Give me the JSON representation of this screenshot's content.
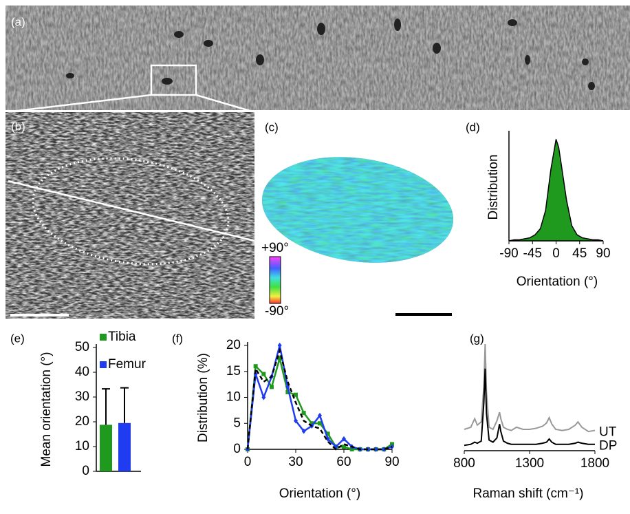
{
  "panel_labels": [
    "(a)",
    "(b)",
    "(c)",
    "(d)",
    "(e)",
    "(f)",
    "(g)"
  ],
  "colorbar": {
    "max_label": "+90°",
    "min_label": "-90°"
  },
  "chart_data": [
    {
      "type": "area",
      "xlabel": "Orientation (°)",
      "ylabel": "Distribution",
      "color": "#1f9a1f",
      "x": [
        -90,
        -80,
        -70,
        -60,
        -50,
        -40,
        -30,
        -20,
        -10,
        -5,
        0,
        5,
        10,
        20,
        30,
        40,
        50,
        60,
        70,
        80,
        90
      ],
      "values": [
        0,
        0.01,
        0.01,
        0.02,
        0.03,
        0.06,
        0.12,
        0.3,
        0.7,
        0.85,
        1.0,
        0.92,
        0.75,
        0.4,
        0.15,
        0.06,
        0.03,
        0.02,
        0.01,
        0.01,
        0
      ],
      "xlim": [
        -90,
        90
      ],
      "xticks": [
        -90,
        -45,
        0,
        45,
        90
      ],
      "ylim": [
        0,
        1.05
      ]
    },
    {
      "type": "bar",
      "ylabel": "Mean orientation (°)",
      "ylim": [
        0,
        50
      ],
      "yticks": [
        0,
        10,
        20,
        30,
        40,
        50
      ],
      "series": [
        {
          "name": "Tibia",
          "color": "#1f9a1f",
          "values": [
            18.8
          ],
          "errors": [
            14.5
          ]
        },
        {
          "name": "Femur",
          "color": "#1f3cf0",
          "values": [
            19.5
          ],
          "errors": [
            14.2
          ]
        }
      ]
    },
    {
      "type": "line",
      "xlabel": "Orientation (°)",
      "ylabel": "Distribution (%)",
      "x": [
        0,
        5,
        10,
        15,
        20,
        25,
        30,
        35,
        40,
        45,
        50,
        55,
        60,
        65,
        70,
        75,
        80,
        85,
        90
      ],
      "xlim": [
        0,
        90
      ],
      "xticks": [
        0,
        30,
        60,
        90
      ],
      "ylim": [
        0,
        20
      ],
      "yticks": [
        0,
        5,
        10,
        15,
        20
      ],
      "series": [
        {
          "color": "#1f9a1f",
          "marker": "square",
          "values": [
            0,
            16,
            14.5,
            12,
            17.5,
            11,
            10.5,
            7,
            5,
            5,
            3,
            0.5,
            0.5,
            0,
            0,
            0,
            0,
            0,
            1
          ]
        },
        {
          "color": "#1f3cf0",
          "marker": "diamond",
          "values": [
            0,
            14.5,
            10,
            14,
            20,
            12,
            5.5,
            3.5,
            4.5,
            6.5,
            2,
            0.5,
            2,
            0.5,
            0,
            0,
            0,
            0,
            0.5
          ]
        },
        {
          "color": "#000000",
          "dash": true,
          "values": [
            0,
            15.5,
            13,
            14,
            19,
            13,
            9,
            5.5,
            4.5,
            4,
            1.5,
            0,
            1,
            0.5,
            0,
            0,
            0,
            0,
            0.5
          ]
        }
      ]
    },
    {
      "type": "spectrum",
      "xlabel": "Raman shift (cm⁻¹)",
      "xlim": [
        800,
        1800
      ],
      "xticks": [
        800,
        1300,
        1800
      ],
      "ylim": [
        0,
        1
      ],
      "x": [
        800,
        850,
        880,
        900,
        930,
        950,
        960,
        970,
        990,
        1020,
        1050,
        1070,
        1080,
        1100,
        1130,
        1160,
        1200,
        1250,
        1300,
        1350,
        1400,
        1430,
        1450,
        1470,
        1500,
        1550,
        1600,
        1650,
        1670,
        1700,
        1750,
        1800
      ],
      "series": [
        {
          "name": "UT",
          "color": "#999999",
          "values": [
            0.2,
            0.22,
            0.3,
            0.24,
            0.27,
            0.6,
            1.0,
            0.55,
            0.22,
            0.2,
            0.28,
            0.36,
            0.3,
            0.22,
            0.2,
            0.19,
            0.22,
            0.2,
            0.2,
            0.21,
            0.23,
            0.26,
            0.31,
            0.25,
            0.2,
            0.19,
            0.2,
            0.24,
            0.27,
            0.22,
            0.18,
            0.19
          ]
        },
        {
          "name": "DP",
          "color": "#000000",
          "values": [
            0.05,
            0.06,
            0.08,
            0.07,
            0.09,
            0.45,
            0.77,
            0.35,
            0.1,
            0.08,
            0.12,
            0.25,
            0.18,
            0.09,
            0.07,
            0.06,
            0.06,
            0.06,
            0.06,
            0.06,
            0.07,
            0.08,
            0.11,
            0.08,
            0.06,
            0.06,
            0.06,
            0.07,
            0.08,
            0.07,
            0.06,
            0.06
          ]
        }
      ]
    }
  ]
}
